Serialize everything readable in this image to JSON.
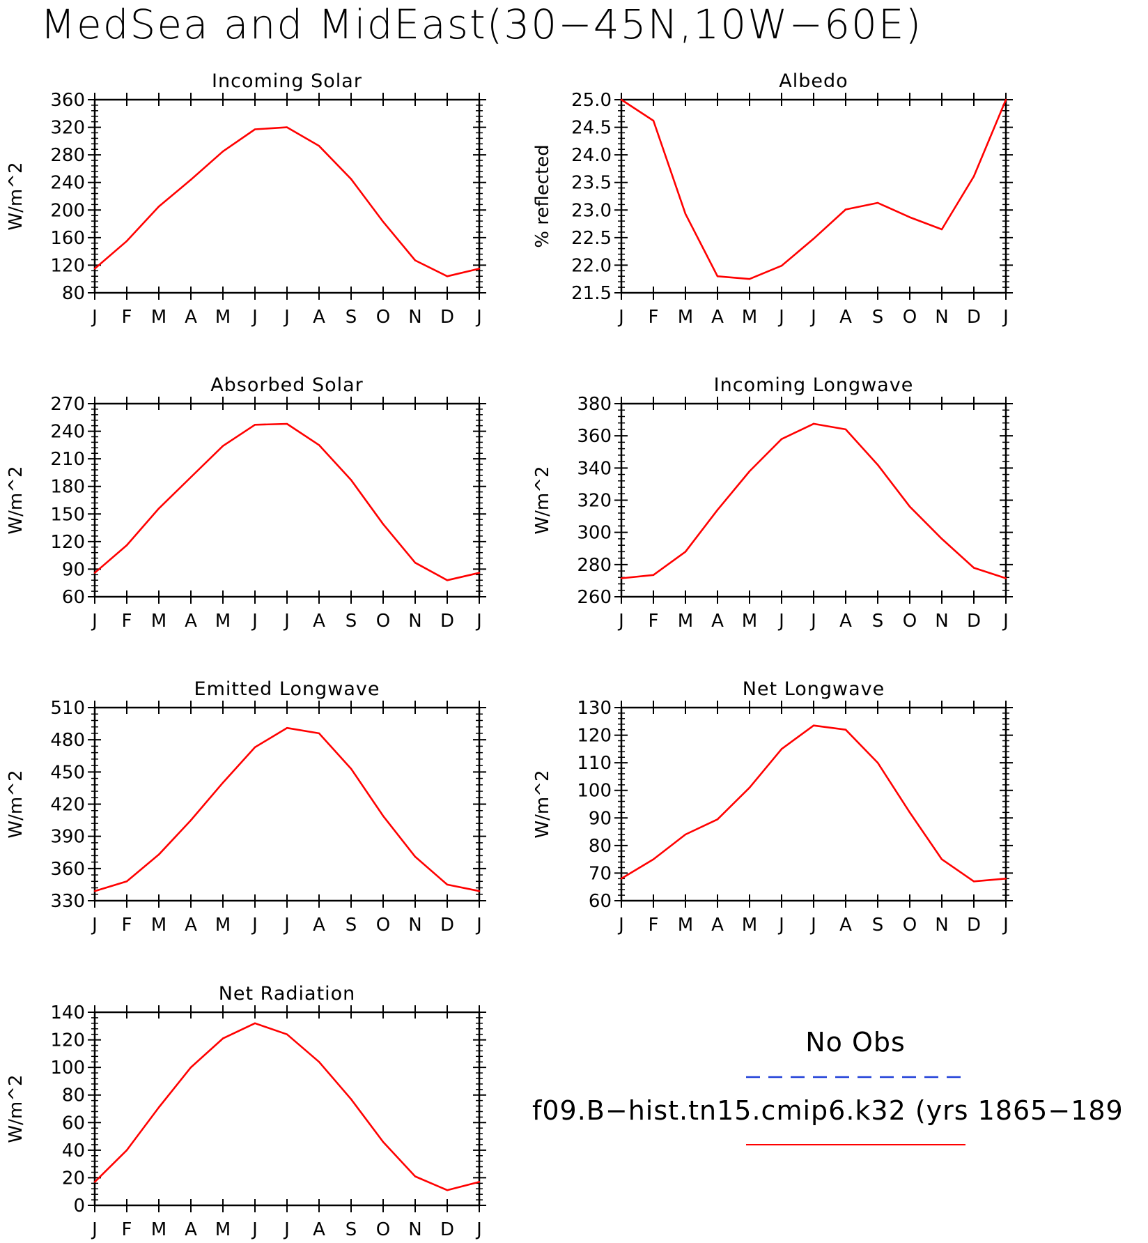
{
  "figure": {
    "title": "MedSea and MidEast(30−45N,10W−60E)"
  },
  "months": [
    "J",
    "F",
    "M",
    "A",
    "M",
    "J",
    "J",
    "A",
    "S",
    "O",
    "N",
    "D",
    "J"
  ],
  "legend": {
    "obs_label": "No Obs",
    "obs_color": "#1f3fd8",
    "model_label": "f09.B−hist.tn15.cmip6.k32 (yrs 1865−189",
    "model_color": "#ff0000"
  },
  "chart_data": [
    {
      "type": "line",
      "title": "Incoming Solar",
      "ylabel": "W/m^2",
      "ylim": [
        80,
        360
      ],
      "yticks": [
        "80",
        "120",
        "160",
        "200",
        "240",
        "280",
        "320",
        "360"
      ],
      "grid": false,
      "series": [
        {
          "values": [
            115,
            155,
            205,
            244,
            285,
            317,
            320,
            293,
            245,
            183,
            127,
            104,
            115
          ]
        }
      ]
    },
    {
      "type": "line",
      "title": "Albedo",
      "ylabel": "% reflected",
      "ylim": [
        21.5,
        25.0
      ],
      "yticks": [
        "21.5",
        "22.0",
        "22.5",
        "23.0",
        "23.5",
        "24.0",
        "24.5",
        "25.0"
      ],
      "grid": false,
      "series": [
        {
          "values": [
            25.0,
            24.62,
            22.93,
            21.8,
            21.75,
            21.99,
            22.48,
            23.01,
            23.13,
            22.87,
            22.65,
            23.61,
            25.0
          ]
        }
      ]
    },
    {
      "type": "line",
      "title": "Absorbed Solar",
      "ylabel": "W/m^2",
      "ylim": [
        60,
        270
      ],
      "yticks": [
        "60",
        "90",
        "120",
        "150",
        "180",
        "210",
        "240",
        "270"
      ],
      "grid": false,
      "series": [
        {
          "values": [
            86,
            116,
            156,
            190,
            224,
            247,
            248,
            225,
            187,
            139,
            97,
            78,
            86
          ]
        }
      ]
    },
    {
      "type": "line",
      "title": "Incoming Longwave",
      "ylabel": "W/m^2",
      "ylim": [
        260,
        380
      ],
      "yticks": [
        "260",
        "280",
        "300",
        "320",
        "340",
        "360",
        "380"
      ],
      "grid": false,
      "series": [
        {
          "values": [
            271.5,
            273.5,
            288,
            314,
            338,
            358,
            367.5,
            364,
            342,
            316,
            296,
            278,
            271.5
          ]
        }
      ]
    },
    {
      "type": "line",
      "title": "Emitted Longwave",
      "ylabel": "W/m^2",
      "ylim": [
        330,
        510
      ],
      "yticks": [
        "330",
        "360",
        "390",
        "420",
        "450",
        "480",
        "510"
      ],
      "grid": false,
      "series": [
        {
          "values": [
            339,
            348,
            373,
            405,
            440,
            473,
            491,
            486,
            453,
            409,
            371,
            345,
            339
          ]
        }
      ]
    },
    {
      "type": "line",
      "title": "Net Longwave",
      "ylabel": "W/m^2",
      "ylim": [
        60,
        130
      ],
      "yticks": [
        "60",
        "70",
        "80",
        "90",
        "100",
        "110",
        "120",
        "130"
      ],
      "grid": false,
      "series": [
        {
          "values": [
            68,
            75,
            84,
            89.5,
            101,
            115,
            123.5,
            122,
            110,
            92,
            75,
            67,
            68
          ]
        }
      ]
    },
    {
      "type": "line",
      "title": "Net Radiation",
      "ylabel": "W/m^2",
      "ylim": [
        0,
        140
      ],
      "yticks": [
        "0",
        "20",
        "40",
        "60",
        "80",
        "100",
        "120",
        "140"
      ],
      "grid": false,
      "series": [
        {
          "values": [
            17,
            40,
            71,
            100,
            121,
            132,
            124,
            104,
            77,
            46,
            21,
            11,
            17
          ]
        }
      ]
    }
  ]
}
